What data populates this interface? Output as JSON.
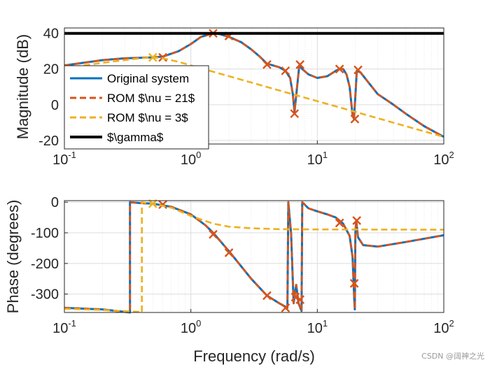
{
  "chart_data": [
    {
      "type": "line",
      "panel": "magnitude",
      "xlabel": "",
      "ylabel": "Magnitude (dB)",
      "xscale": "log",
      "xlim": [
        0.1,
        100
      ],
      "ylim": [
        -22,
        43
      ],
      "yticks": [
        -20,
        0,
        20,
        40
      ],
      "xticks": [
        {
          "value": 0.1,
          "base": "10",
          "exp": "-1"
        },
        {
          "value": 1,
          "base": "10",
          "exp": "0"
        },
        {
          "value": 10,
          "base": "10",
          "exp": "1"
        },
        {
          "value": 100,
          "base": "10",
          "exp": "2"
        }
      ],
      "grid": true,
      "legend": {
        "placement": "left",
        "entries": [
          {
            "label": "Original system",
            "color": "#0072BD",
            "style": "solid"
          },
          {
            "label": "ROM $\\nu = 21$",
            "color": "#D95319",
            "style": "dashed"
          },
          {
            "label": "ROM $\\nu = 3$",
            "color": "#EDB120",
            "style": "dashed"
          },
          {
            "label": "$\\gamma$",
            "color": "#000000",
            "style": "solid"
          }
        ]
      },
      "series": [
        {
          "name": "Original system",
          "color": "#0072BD",
          "style": "solid",
          "points": [
            [
              0.1,
              22
            ],
            [
              0.2,
              25
            ],
            [
              0.3,
              26
            ],
            [
              0.5,
              26.5
            ],
            [
              0.6,
              27
            ],
            [
              0.8,
              30
            ],
            [
              1,
              34
            ],
            [
              1.2,
              38
            ],
            [
              1.5,
              40
            ],
            [
              1.7,
              39.5
            ],
            [
              2,
              38
            ],
            [
              2.5,
              35
            ],
            [
              3,
              31
            ],
            [
              3.5,
              27
            ],
            [
              4,
              23
            ],
            [
              5,
              21
            ],
            [
              5.6,
              19
            ],
            [
              6.1,
              15
            ],
            [
              6.4,
              6
            ],
            [
              6.6,
              -4
            ],
            [
              6.8,
              5
            ],
            [
              7.2,
              22
            ],
            [
              7.6,
              20
            ],
            [
              8.5,
              17
            ],
            [
              10,
              15
            ],
            [
              12,
              16
            ],
            [
              14,
              19
            ],
            [
              15,
              20
            ],
            [
              16,
              20
            ],
            [
              17,
              17
            ],
            [
              18,
              10
            ],
            [
              19,
              -6
            ],
            [
              19.5,
              -8
            ],
            [
              20,
              5
            ],
            [
              20.5,
              19
            ],
            [
              22,
              18
            ],
            [
              25,
              13
            ],
            [
              30,
              6
            ],
            [
              40,
              0
            ],
            [
              50,
              -5
            ],
            [
              70,
              -12
            ],
            [
              100,
              -18
            ]
          ]
        },
        {
          "name": "ROM $\\nu = 21$",
          "color": "#D95319",
          "style": "dashed",
          "points": [
            [
              0.1,
              22
            ],
            [
              0.2,
              25
            ],
            [
              0.3,
              26
            ],
            [
              0.5,
              26.5
            ],
            [
              0.6,
              27
            ],
            [
              0.8,
              30
            ],
            [
              1,
              34
            ],
            [
              1.2,
              38
            ],
            [
              1.5,
              40
            ],
            [
              1.7,
              39.5
            ],
            [
              2,
              38
            ],
            [
              2.5,
              35
            ],
            [
              3,
              31
            ],
            [
              3.5,
              27
            ],
            [
              4,
              23
            ],
            [
              5,
              21
            ],
            [
              5.6,
              19
            ],
            [
              6.1,
              15
            ],
            [
              6.4,
              6
            ],
            [
              6.6,
              -4
            ],
            [
              6.8,
              5
            ],
            [
              7.2,
              22
            ],
            [
              7.6,
              20
            ],
            [
              8.5,
              17
            ],
            [
              10,
              15
            ],
            [
              12,
              16
            ],
            [
              14,
              19
            ],
            [
              15,
              20
            ],
            [
              16,
              20
            ],
            [
              17,
              17
            ],
            [
              18,
              10
            ],
            [
              19,
              -6
            ],
            [
              19.5,
              -8
            ],
            [
              20,
              5
            ],
            [
              20.5,
              19
            ],
            [
              22,
              18
            ],
            [
              25,
              13
            ],
            [
              30,
              6
            ],
            [
              40,
              0
            ],
            [
              50,
              -5
            ],
            [
              70,
              -12
            ],
            [
              100,
              -18
            ]
          ],
          "markers": [
            [
              0.6,
              26.5
            ],
            [
              1.5,
              40
            ],
            [
              2,
              38.5
            ],
            [
              4,
              22.5
            ],
            [
              5.6,
              19
            ],
            [
              6.6,
              -5
            ],
            [
              7.3,
              22.5
            ],
            [
              15,
              20
            ],
            [
              19.8,
              -8
            ],
            [
              21,
              19.5
            ]
          ]
        },
        {
          "name": "ROM $\\nu = 3$",
          "color": "#EDB120",
          "style": "dashed",
          "points": [
            [
              0.1,
              20.5
            ],
            [
              0.2,
              23.5
            ],
            [
              0.3,
              25
            ],
            [
              0.4,
              26
            ],
            [
              0.5,
              26.5
            ],
            [
              0.6,
              26
            ],
            [
              0.8,
              24
            ],
            [
              1,
              22
            ],
            [
              2,
              16
            ],
            [
              5,
              8
            ],
            [
              10,
              2
            ],
            [
              20,
              -4
            ],
            [
              50,
              -12
            ],
            [
              100,
              -18
            ]
          ],
          "markers": [
            [
              0.5,
              26.5
            ]
          ]
        },
        {
          "name": "$\\gamma$",
          "color": "#000000",
          "style": "solid",
          "points": [
            [
              0.1,
              40
            ],
            [
              100,
              40
            ]
          ]
        }
      ]
    },
    {
      "type": "line",
      "panel": "phase",
      "xlabel": "Frequency (rad/s)",
      "ylabel": "Phase (degrees)",
      "xscale": "log",
      "xlim": [
        0.1,
        100
      ],
      "ylim": [
        -360,
        5
      ],
      "yticks": [
        -300,
        -200,
        -100,
        0
      ],
      "xticks": [
        {
          "value": 0.1,
          "base": "10",
          "exp": "-1"
        },
        {
          "value": 1,
          "base": "10",
          "exp": "0"
        },
        {
          "value": 10,
          "base": "10",
          "exp": "1"
        },
        {
          "value": 100,
          "base": "10",
          "exp": "2"
        }
      ],
      "grid": true,
      "series": [
        {
          "name": "Original system",
          "color": "#0072BD",
          "style": "solid",
          "points": [
            [
              0.1,
              -345
            ],
            [
              0.2,
              -350
            ],
            [
              0.3,
              -358
            ],
            [
              0.33,
              -360
            ],
            [
              0.33,
              0
            ],
            [
              0.4,
              -3
            ],
            [
              0.5,
              -5
            ],
            [
              0.7,
              -15
            ],
            [
              1,
              -40
            ],
            [
              1.3,
              -75
            ],
            [
              1.5,
              -100
            ],
            [
              2,
              -160
            ],
            [
              3,
              -250
            ],
            [
              4,
              -305
            ],
            [
              5,
              -330
            ],
            [
              5.8,
              -345
            ],
            [
              5.9,
              0
            ],
            [
              6.2,
              -100
            ],
            [
              6.5,
              -330
            ],
            [
              6.8,
              -270
            ],
            [
              7.1,
              -330
            ],
            [
              7.5,
              -355
            ],
            [
              7.6,
              0
            ],
            [
              8.5,
              -20
            ],
            [
              10,
              -30
            ],
            [
              12,
              -40
            ],
            [
              14,
              -50
            ],
            [
              16,
              -70
            ],
            [
              18,
              -110
            ],
            [
              19,
              -180
            ],
            [
              19.6,
              -320
            ],
            [
              19.8,
              -350
            ],
            [
              20,
              -100
            ],
            [
              20.3,
              -60
            ],
            [
              21,
              -115
            ],
            [
              23,
              -140
            ],
            [
              30,
              -145
            ],
            [
              50,
              -130
            ],
            [
              100,
              -108
            ]
          ]
        },
        {
          "name": "ROM $\\nu = 21$",
          "color": "#D95319",
          "style": "dashed",
          "points": [
            [
              0.1,
              -345
            ],
            [
              0.2,
              -350
            ],
            [
              0.3,
              -358
            ],
            [
              0.33,
              -360
            ],
            [
              0.33,
              0
            ],
            [
              0.4,
              -3
            ],
            [
              0.5,
              -5
            ],
            [
              0.7,
              -15
            ],
            [
              1,
              -40
            ],
            [
              1.3,
              -75
            ],
            [
              1.5,
              -100
            ],
            [
              2,
              -160
            ],
            [
              3,
              -250
            ],
            [
              4,
              -305
            ],
            [
              5,
              -330
            ],
            [
              5.8,
              -345
            ],
            [
              5.9,
              0
            ],
            [
              6.2,
              -100
            ],
            [
              6.5,
              -330
            ],
            [
              6.8,
              -270
            ],
            [
              7.1,
              -330
            ],
            [
              7.5,
              -355
            ],
            [
              7.6,
              0
            ],
            [
              8.5,
              -20
            ],
            [
              10,
              -30
            ],
            [
              12,
              -40
            ],
            [
              14,
              -50
            ],
            [
              16,
              -70
            ],
            [
              18,
              -110
            ],
            [
              19,
              -180
            ],
            [
              19.6,
              -320
            ],
            [
              19.8,
              -350
            ],
            [
              20,
              -100
            ],
            [
              20.3,
              -60
            ],
            [
              21,
              -115
            ],
            [
              23,
              -140
            ],
            [
              30,
              -145
            ],
            [
              50,
              -130
            ],
            [
              100,
              -108
            ]
          ],
          "markers": [
            [
              0.6,
              -8
            ],
            [
              1.5,
              -105
            ],
            [
              2,
              -165
            ],
            [
              4,
              -305
            ],
            [
              5.6,
              -345
            ],
            [
              6.7,
              -310
            ],
            [
              7.3,
              -318
            ],
            [
              15,
              -68
            ],
            [
              19.6,
              -265
            ],
            [
              20.5,
              -60
            ]
          ]
        },
        {
          "name": "ROM $\\nu = 3$",
          "color": "#EDB120",
          "style": "dashed",
          "points": [
            [
              0.1,
              -348
            ],
            [
              0.2,
              -352
            ],
            [
              0.3,
              -356
            ],
            [
              0.4,
              -358
            ],
            [
              0.41,
              -360
            ],
            [
              0.41,
              0
            ],
            [
              0.45,
              -3
            ],
            [
              0.5,
              -5
            ],
            [
              0.7,
              -18
            ],
            [
              1,
              -45
            ],
            [
              1.5,
              -70
            ],
            [
              2,
              -80
            ],
            [
              3,
              -85
            ],
            [
              5,
              -88
            ],
            [
              10,
              -89
            ],
            [
              100,
              -90
            ]
          ],
          "markers": [
            [
              0.5,
              -5
            ]
          ]
        }
      ]
    }
  ],
  "watermark": "CSDN @阔神之光"
}
